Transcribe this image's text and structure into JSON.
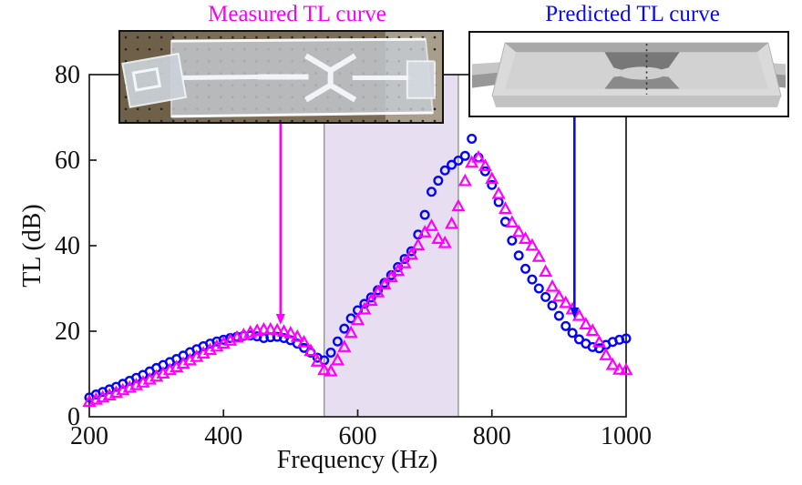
{
  "header": {
    "measured_title": "Measured TL curve",
    "predicted_title": "Predicted TL curve"
  },
  "colors": {
    "measured": "#ff00ff",
    "predicted": "#0505f5",
    "measured_title": "#fa00fa",
    "predicted_title": "#0b0be8",
    "band_fill": "#e7def1",
    "band_edge": "#8e8e8e",
    "axis": "#1a1a1a"
  },
  "axes": {
    "xlabel": "Frequency (Hz)",
    "ylabel": "TL (dB)",
    "x_ticks": [
      200,
      400,
      600,
      800,
      1000
    ],
    "y_ticks": [
      0,
      20,
      40,
      60,
      80
    ],
    "xlim": [
      200,
      1000
    ],
    "ylim": [
      0,
      80
    ]
  },
  "band": {
    "from_hz": 550,
    "to_hz": 750
  },
  "annotations": {
    "measured_arrow": {
      "x_hz": 485,
      "tip_tl": 21.5
    },
    "predicted_arrow": {
      "x_hz": 923,
      "tip_tl": 23
    }
  },
  "insets": {
    "left_caption": "fabricated-sample-photo",
    "right_caption": "simulated-model-render"
  },
  "chart_data": {
    "type": "scatter",
    "title": "",
    "xlabel": "Frequency (Hz)",
    "ylabel": "TL (dB)",
    "xlim": [
      200,
      1000
    ],
    "ylim": [
      0,
      80
    ],
    "grid": false,
    "shaded_band_hz": [
      550,
      750
    ],
    "x": [
      200,
      210,
      220,
      230,
      240,
      250,
      260,
      270,
      280,
      290,
      300,
      310,
      320,
      330,
      340,
      350,
      360,
      370,
      380,
      390,
      400,
      410,
      420,
      430,
      440,
      450,
      460,
      470,
      480,
      490,
      500,
      510,
      520,
      530,
      540,
      550,
      560,
      570,
      580,
      590,
      600,
      610,
      620,
      630,
      640,
      650,
      660,
      670,
      680,
      690,
      700,
      710,
      720,
      730,
      740,
      750,
      760,
      770,
      780,
      790,
      800,
      810,
      820,
      830,
      840,
      850,
      860,
      870,
      880,
      890,
      900,
      910,
      920,
      930,
      940,
      950,
      960,
      970,
      980,
      990,
      1000
    ],
    "series": [
      {
        "name": "Measured TL curve",
        "marker": "triangle",
        "color": "#ff00ff",
        "values": [
          3.5,
          4.0,
          4.5,
          5.0,
          5.6,
          6.2,
          6.8,
          7.4,
          8.0,
          8.7,
          9.4,
          10.1,
          10.9,
          11.6,
          12.4,
          13.2,
          14.0,
          14.8,
          15.6,
          16.4,
          17.1,
          17.8,
          18.5,
          19.1,
          19.7,
          20.1,
          20.4,
          20.4,
          20.2,
          19.9,
          19.5,
          18.7,
          17.4,
          15.4,
          12.9,
          10.9,
          10.6,
          13.2,
          16.3,
          19.6,
          22.6,
          25.1,
          27.1,
          29.1,
          30.9,
          32.6,
          34.1,
          35.9,
          37.9,
          40.1,
          43.1,
          44.6,
          41.6,
          40.6,
          45.1,
          49.2,
          55.1,
          59.4,
          60.6,
          58.6,
          55.6,
          52.1,
          48.6,
          45.4,
          43.2,
          41.6,
          40.0,
          37.4,
          33.9,
          30.4,
          28.1,
          26.6,
          25.1,
          23.6,
          21.6,
          20.1,
          17.4,
          14.4,
          12.1,
          11.0,
          10.9
        ]
      },
      {
        "name": "Predicted TL curve",
        "marker": "circle",
        "color": "#0505f5",
        "values": [
          4.5,
          5.2,
          5.8,
          6.4,
          7.0,
          7.7,
          8.4,
          9.1,
          9.8,
          10.6,
          11.4,
          12.1,
          12.8,
          13.5,
          14.3,
          15.1,
          15.8,
          16.5,
          17.1,
          17.6,
          18.0,
          18.4,
          18.7,
          18.9,
          19.0,
          18.8,
          18.4,
          18.6,
          18.7,
          18.4,
          17.9,
          17.1,
          16.1,
          15.0,
          13.8,
          13.2,
          15.0,
          17.6,
          20.6,
          23.0,
          24.9,
          26.4,
          27.9,
          29.6,
          31.3,
          33.1,
          35.0,
          36.9,
          38.7,
          42.6,
          47.2,
          52.6,
          55.2,
          57.6,
          58.9,
          59.9,
          61.0,
          65.0,
          60.6,
          57.4,
          54.2,
          50.2,
          45.6,
          41.2,
          37.7,
          34.6,
          32.1,
          30.0,
          28.0,
          26.0,
          23.6,
          21.2,
          19.6,
          18.1,
          17.1,
          16.3,
          16.0,
          16.8,
          17.5,
          18.0,
          18.3
        ]
      }
    ]
  }
}
